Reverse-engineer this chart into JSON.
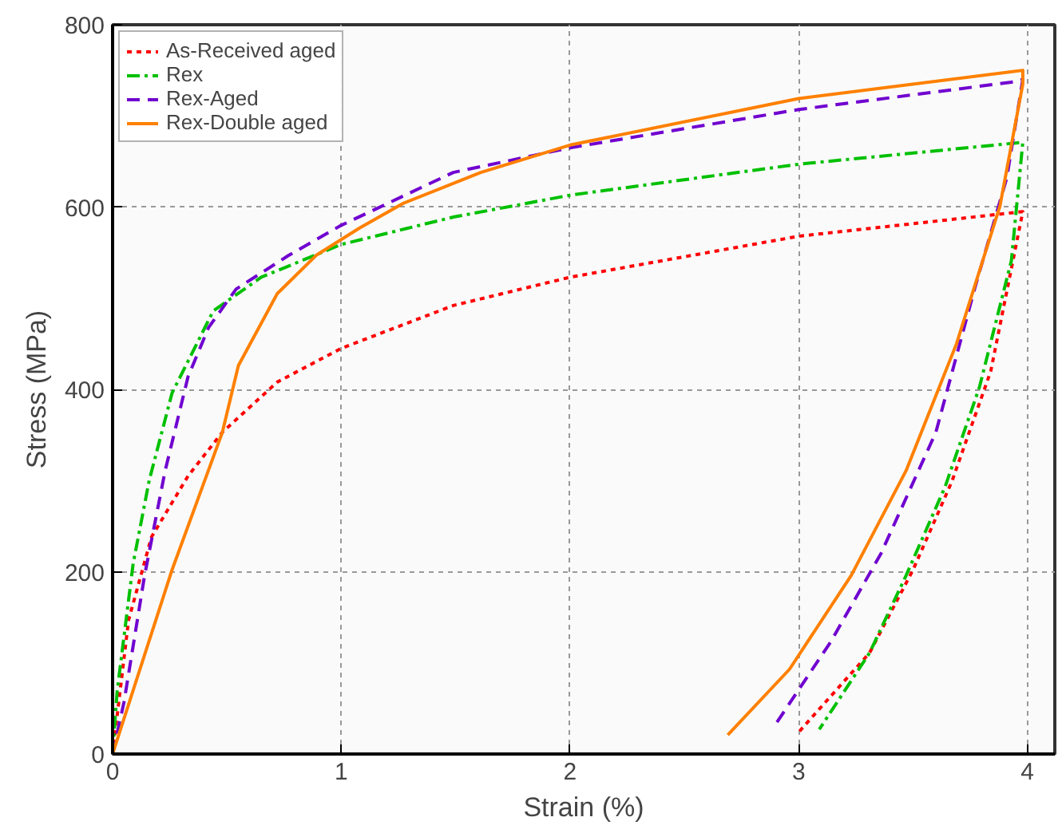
{
  "chart_data": {
    "type": "line",
    "xlabel": "Strain (%)",
    "ylabel": "Stress (MPa)",
    "xlim": [
      0,
      4.12
    ],
    "ylim": [
      0,
      800
    ],
    "xticks": [
      0,
      1,
      2,
      3,
      4
    ],
    "yticks": [
      0,
      200,
      400,
      600,
      800
    ],
    "grid": true,
    "legend": "top left",
    "series": [
      {
        "name": "As-Received aged",
        "color": "#ff0000",
        "line_style": "dotted",
        "x": [
          0,
          0.07,
          0.17,
          0.33,
          0.48,
          0.72,
          1.0,
          1.49,
          2.0,
          3.0,
          3.98,
          3.84,
          3.67,
          3.5,
          3.31,
          3.0
        ],
        "values": [
          0,
          147,
          238,
          305,
          353,
          408,
          445,
          492,
          523,
          568,
          595,
          420,
          299,
          202,
          111,
          24
        ]
      },
      {
        "name": "Rex",
        "color": "#00c000",
        "line_style": "dashdot",
        "x": [
          0,
          0.02,
          0.09,
          0.16,
          0.26,
          0.44,
          0.65,
          1.0,
          1.49,
          2.0,
          3.0,
          3.98,
          3.93,
          3.79,
          3.64,
          3.47,
          3.31,
          3.09
        ],
        "values": [
          0,
          69,
          209,
          300,
          396,
          486,
          523,
          559,
          589,
          613,
          647,
          671,
          541,
          402,
          293,
          196,
          111,
          27
        ]
      },
      {
        "name": "Rex-Aged",
        "color": "#7000d0",
        "line_style": "dashed",
        "x": [
          0,
          0.05,
          0.14,
          0.23,
          0.33,
          0.42,
          0.54,
          0.77,
          1.0,
          1.49,
          2.0,
          3.0,
          3.93,
          3.98,
          3.91,
          3.77,
          3.6,
          3.36,
          3.14,
          2.9
        ],
        "values": [
          0,
          57,
          196,
          311,
          414,
          468,
          510,
          547,
          580,
          638,
          665,
          707,
          737,
          740,
          632,
          511,
          353,
          220,
          123,
          33
        ]
      },
      {
        "name": "Rex-Double aged",
        "color": "#ff8000",
        "line_style": "solid",
        "x": [
          0,
          0.26,
          0.48,
          0.55,
          0.72,
          0.89,
          1.08,
          1.27,
          1.61,
          2.0,
          3.0,
          3.98,
          3.98,
          3.88,
          3.69,
          3.47,
          3.23,
          2.96,
          2.69
        ],
        "values": [
          0,
          202,
          353,
          426,
          505,
          547,
          577,
          604,
          638,
          668,
          719,
          750,
          735,
          601,
          450,
          311,
          196,
          93,
          21
        ]
      }
    ]
  }
}
